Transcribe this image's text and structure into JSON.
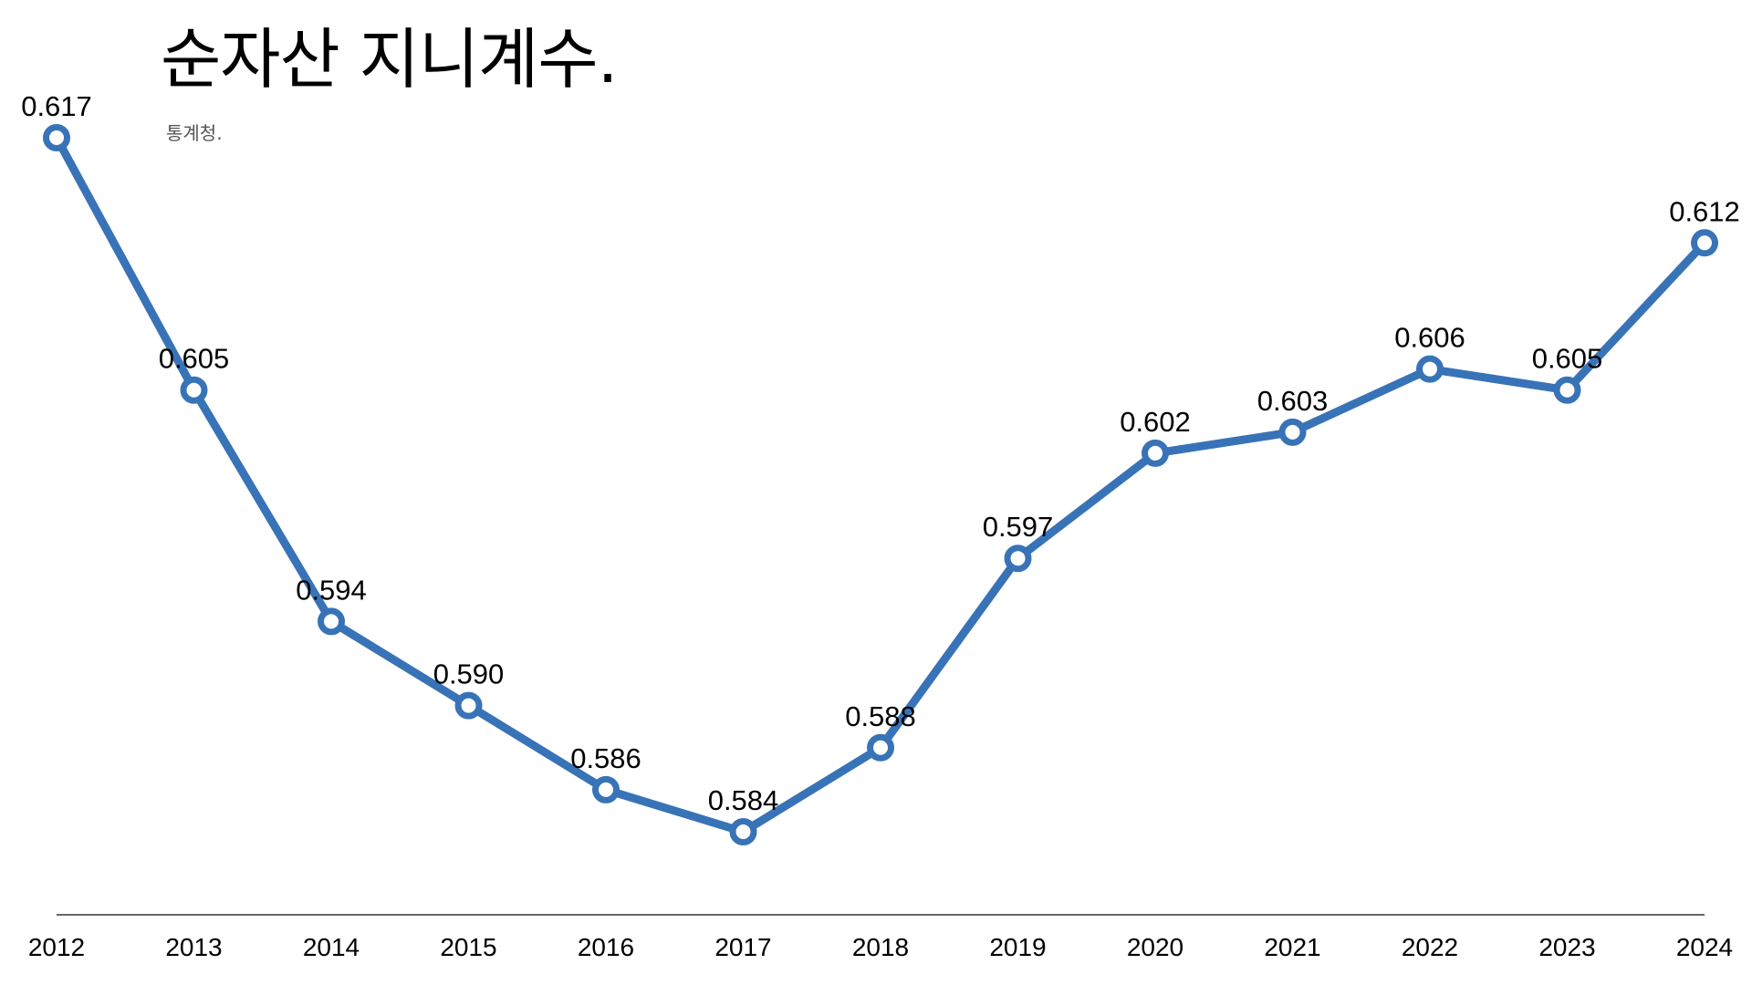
{
  "chart_data": {
    "type": "line",
    "title": "순자산 지니계수.",
    "subtitle": "통계청.",
    "xlabel": "",
    "ylabel": "",
    "categories": [
      "2012",
      "2013",
      "2014",
      "2015",
      "2016",
      "2017",
      "2018",
      "2019",
      "2020",
      "2021",
      "2022",
      "2023",
      "2024"
    ],
    "series": [
      {
        "values": [
          0.617,
          0.605,
          0.594,
          0.59,
          0.586,
          0.584,
          0.588,
          0.597,
          0.602,
          0.603,
          0.606,
          0.605,
          0.612
        ],
        "labels": [
          "0.617",
          "0.605",
          "0.594",
          "0.590",
          "0.586",
          "0.584",
          "0.588",
          "0.597",
          "0.602",
          "0.603",
          "0.606",
          "0.605",
          "0.612"
        ],
        "color": "#3873b8"
      }
    ],
    "ylim": [
      0.58,
      0.62
    ],
    "grid": false,
    "legend": "none",
    "colors": {
      "line": "#3873b8",
      "marker_fill": "#ffffff",
      "baseline": "#333333"
    }
  }
}
